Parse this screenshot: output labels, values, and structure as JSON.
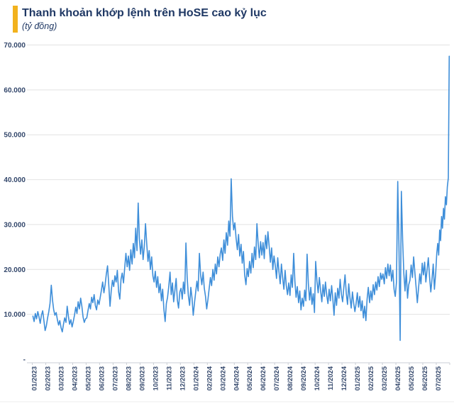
{
  "header": {
    "title": "Thanh khoản khớp lệnh trên HoSE cao kỷ lục",
    "subtitle": "(tỷ đồng)",
    "accent_color": "#F2B21D"
  },
  "chart_data": {
    "type": "line",
    "title": "Thanh khoản khớp lệnh trên HoSE cao kỷ lục",
    "unit": "tỷ đồng",
    "line_color": "#3E8ED9",
    "grid_color": "#E2E2E2",
    "axis_color": "#C9CDD4",
    "label_color": "#33476B",
    "ylim": [
      0,
      70000
    ],
    "ytick_step": 10000,
    "ytick_labels": [
      "-",
      "10.000",
      "20.000",
      "30.000",
      "40.000",
      "50.000",
      "60.000",
      "70.000"
    ],
    "grid": true,
    "legend": "none",
    "months": [
      {
        "label": "01/2023",
        "values": [
          9600,
          8400,
          10200,
          9000,
          10600,
          9400,
          8000,
          9800,
          10800,
          8600,
          6400
        ]
      },
      {
        "label": "02/2023",
        "values": [
          7400,
          9200,
          10600,
          12400,
          16500,
          13200,
          11000,
          9800,
          10400,
          8800,
          7600
        ]
      },
      {
        "label": "03/2023",
        "values": [
          8600,
          7000,
          6100,
          7800,
          9200,
          8200,
          11800,
          9600,
          7800,
          8800,
          7200
        ]
      },
      {
        "label": "04/2023",
        "values": [
          8400,
          9800,
          11600,
          10200,
          12800,
          11200,
          13600,
          11800,
          9400,
          8200,
          9000
        ]
      },
      {
        "label": "05/2023",
        "values": [
          9200,
          10800,
          12400,
          11200,
          13800,
          12600,
          14400,
          12000,
          11000,
          13200,
          12200
        ]
      },
      {
        "label": "06/2023",
        "values": [
          13800,
          15400,
          17200,
          14800,
          16600,
          19000,
          20800,
          16400,
          11800,
          15200,
          17600
        ]
      },
      {
        "label": "07/2023",
        "values": [
          16200,
          18600,
          17200,
          19800,
          15000,
          13400,
          17800,
          19200,
          17000,
          20400,
          23600
        ]
      },
      {
        "label": "08/2023",
        "values": [
          20600,
          23000,
          19800,
          24400,
          21200,
          25800,
          22600,
          29200,
          24200,
          34800,
          26800
        ]
      },
      {
        "label": "09/2023",
        "values": [
          23400,
          26600,
          22200,
          25000,
          30200,
          25600,
          21800,
          24200,
          20000,
          22800,
          18600
        ]
      },
      {
        "label": "10/2023",
        "values": [
          17200,
          19600,
          16000,
          18400,
          14800,
          16800,
          13000,
          15600,
          11200,
          8400,
          12400
        ]
      },
      {
        "label": "11/2023",
        "values": [
          13800,
          16200,
          19400,
          14400,
          17000,
          12800,
          15400,
          18000,
          13200,
          11400,
          15000
        ]
      },
      {
        "label": "12/2023",
        "values": [
          15800,
          13400,
          17200,
          14600,
          25900,
          18400,
          14200,
          12000,
          16000,
          13600,
          9800
        ]
      },
      {
        "label": "01/2024",
        "values": [
          12600,
          15000,
          17400,
          15200,
          23600,
          18800,
          16600,
          19400,
          15800,
          14000,
          11200
        ]
      },
      {
        "label": "02/2024",
        "values": [
          13400,
          15800,
          18200,
          16400,
          20000,
          17600,
          21200,
          19000,
          22800,
          20600,
          23400
        ]
      },
      {
        "label": "03/2024",
        "values": [
          24800,
          22000,
          26600,
          23600,
          28200,
          25400,
          30800,
          27400,
          40200,
          31800,
          28800
        ]
      },
      {
        "label": "04/2024",
        "values": [
          30400,
          27000,
          24400,
          27800,
          23000,
          25600,
          21400,
          24000,
          18800,
          16600,
          20200
        ]
      },
      {
        "label": "05/2024",
        "values": [
          18400,
          21800,
          19200,
          23600,
          20400,
          25000,
          22200,
          30200,
          25800,
          22600,
          26200
        ]
      },
      {
        "label": "06/2024",
        "values": [
          23200,
          26000,
          22400,
          27600,
          24600,
          28400,
          25200,
          21600,
          24800,
          20000,
          23000
        ]
      },
      {
        "label": "07/2024",
        "values": [
          20800,
          18000,
          22600,
          19400,
          16800,
          21200,
          18200,
          15600,
          19800,
          16400,
          14400
        ]
      },
      {
        "label": "08/2024",
        "values": [
          17000,
          14200,
          18800,
          16000,
          23600,
          17400,
          13800,
          16200,
          12600,
          15200,
          11000
        ]
      },
      {
        "label": "09/2024",
        "values": [
          13600,
          11800,
          15400,
          13000,
          23400,
          16800,
          13200,
          16000,
          12200,
          14600,
          10400
        ]
      },
      {
        "label": "10/2024",
        "values": [
          21800,
          17400,
          14800,
          18200,
          15400,
          12800,
          16600,
          14000,
          17200,
          14200,
          12400
        ]
      },
      {
        "label": "11/2024",
        "values": [
          15600,
          13000,
          16400,
          13400,
          9800,
          14800,
          12000,
          15800,
          13600,
          17800,
          14400
        ]
      },
      {
        "label": "12/2024",
        "values": [
          12800,
          16000,
          18800,
          14600,
          12200,
          16800,
          13800,
          11400,
          15000,
          12600,
          10600
        ]
      },
      {
        "label": "01/2025",
        "values": [
          12400,
          14800,
          11600,
          14000,
          10800,
          13000,
          9200,
          11800,
          8600,
          13400,
          16000
        ]
      },
      {
        "label": "02/2025",
        "values": [
          12600,
          15200,
          13200,
          16600,
          14400,
          17200,
          15400,
          18400,
          16200,
          19200,
          17800
        ]
      },
      {
        "label": "03/2025",
        "values": [
          19000,
          16800,
          20400,
          18000,
          21200,
          18600,
          21000,
          17400,
          19800,
          15600,
          14000
        ]
      },
      {
        "label": "04/2025",
        "values": [
          17200,
          39600,
          25200,
          4200,
          37400,
          26400,
          19000,
          15200,
          19800,
          13600,
          16600
        ]
      },
      {
        "label": "05/2025",
        "values": [
          17600,
          21000,
          18200,
          22800,
          19400,
          16200,
          12600,
          15800,
          19000,
          16800,
          21400
        ]
      },
      {
        "label": "06/2025",
        "values": [
          18800,
          21600,
          17200,
          20000,
          22600,
          18400,
          15000,
          17800,
          21200,
          15600,
          19200
        ]
      },
      {
        "label": "07/2025",
        "values": [
          23600,
          25800,
          23200,
          28800,
          26400,
          31800,
          29200,
          33600,
          31200,
          36200,
          34400,
          38400,
          40400,
          67500
        ]
      }
    ]
  }
}
